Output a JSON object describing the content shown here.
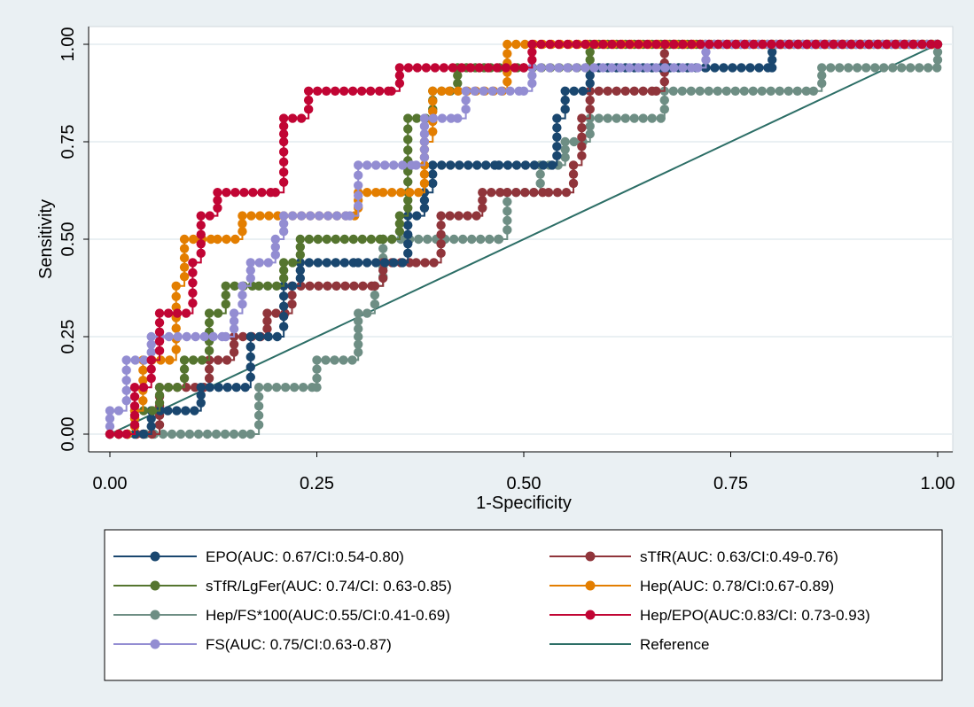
{
  "chart_data": {
    "type": "line",
    "xlabel": "1-Specificity",
    "ylabel": "Sensitivity",
    "xlim": [
      0,
      1
    ],
    "ylim": [
      0,
      1
    ],
    "xticks": [
      "0.00",
      "0.25",
      "0.50",
      "0.75",
      "1.00"
    ],
    "yticks": [
      "0.00",
      "0.25",
      "0.50",
      "0.75",
      "1.00"
    ],
    "grid": true,
    "legend_position": "bottom",
    "series": [
      {
        "name": "EPO(AUC: 0.67/CI:0.54-0.80)",
        "color": "#1a476f",
        "points": [
          [
            0,
            0
          ],
          [
            0.03,
            0
          ],
          [
            0.05,
            0.06
          ],
          [
            0.07,
            0.06
          ],
          [
            0.11,
            0.12
          ],
          [
            0.17,
            0.25
          ],
          [
            0.21,
            0.38
          ],
          [
            0.23,
            0.44
          ],
          [
            0.3,
            0.44
          ],
          [
            0.36,
            0.56
          ],
          [
            0.38,
            0.62
          ],
          [
            0.39,
            0.69
          ],
          [
            0.47,
            0.69
          ],
          [
            0.54,
            0.81
          ],
          [
            0.55,
            0.88
          ],
          [
            0.58,
            0.94
          ],
          [
            0.72,
            0.94
          ],
          [
            0.8,
            0.94
          ],
          [
            0.8,
            1
          ],
          [
            1,
            1
          ]
        ]
      },
      {
        "name": "sTfR(AUC: 0.63/CI:0.49-0.76)",
        "color": "#90353b",
        "points": [
          [
            0,
            0
          ],
          [
            0.04,
            0
          ],
          [
            0.06,
            0.12
          ],
          [
            0.12,
            0.19
          ],
          [
            0.15,
            0.25
          ],
          [
            0.19,
            0.31
          ],
          [
            0.22,
            0.38
          ],
          [
            0.32,
            0.38
          ],
          [
            0.33,
            0.44
          ],
          [
            0.37,
            0.44
          ],
          [
            0.4,
            0.56
          ],
          [
            0.45,
            0.62
          ],
          [
            0.48,
            0.62
          ],
          [
            0.53,
            0.62
          ],
          [
            0.56,
            0.69
          ],
          [
            0.57,
            0.81
          ],
          [
            0.58,
            0.88
          ],
          [
            0.66,
            0.88
          ],
          [
            0.67,
            1
          ],
          [
            1,
            1
          ]
        ]
      },
      {
        "name": "sTfR/LgFer(AUC: 0.74/CI: 0.63-0.85)",
        "color": "#55752f",
        "points": [
          [
            0,
            0
          ],
          [
            0.03,
            0.06
          ],
          [
            0.06,
            0.12
          ],
          [
            0.09,
            0.19
          ],
          [
            0.12,
            0.31
          ],
          [
            0.14,
            0.38
          ],
          [
            0.18,
            0.38
          ],
          [
            0.21,
            0.44
          ],
          [
            0.23,
            0.5
          ],
          [
            0.33,
            0.5
          ],
          [
            0.35,
            0.56
          ],
          [
            0.36,
            0.62
          ],
          [
            0.36,
            0.81
          ],
          [
            0.39,
            0.88
          ],
          [
            0.42,
            0.94
          ],
          [
            0.46,
            0.94
          ],
          [
            0.5,
            0.94
          ],
          [
            0.58,
            1
          ],
          [
            1,
            1
          ]
        ]
      },
      {
        "name": "Hep(AUC: 0.78/CI:0.67-0.89)",
        "color": "#e37e00",
        "points": [
          [
            0,
            0
          ],
          [
            0.03,
            0.06
          ],
          [
            0.04,
            0.19
          ],
          [
            0.08,
            0.38
          ],
          [
            0.09,
            0.5
          ],
          [
            0.13,
            0.5
          ],
          [
            0.16,
            0.56
          ],
          [
            0.21,
            0.56
          ],
          [
            0.3,
            0.62
          ],
          [
            0.33,
            0.62
          ],
          [
            0.38,
            0.69
          ],
          [
            0.38,
            0.75
          ],
          [
            0.39,
            0.88
          ],
          [
            0.41,
            0.88
          ],
          [
            0.48,
            1
          ],
          [
            1,
            1
          ]
        ]
      },
      {
        "name": "Hep/FS*100(AUC:0.55/CI:0.41-0.69)",
        "color": "#6e8e84",
        "points": [
          [
            0,
            0
          ],
          [
            0.17,
            0
          ],
          [
            0.18,
            0.12
          ],
          [
            0.25,
            0.12
          ],
          [
            0.25,
            0.19
          ],
          [
            0.3,
            0.25
          ],
          [
            0.3,
            0.31
          ],
          [
            0.32,
            0.38
          ],
          [
            0.33,
            0.5
          ],
          [
            0.47,
            0.5
          ],
          [
            0.48,
            0.62
          ],
          [
            0.52,
            0.69
          ],
          [
            0.55,
            0.75
          ],
          [
            0.58,
            0.81
          ],
          [
            0.67,
            0.88
          ],
          [
            0.85,
            0.88
          ],
          [
            0.86,
            0.94
          ],
          [
            1,
            1
          ]
        ]
      },
      {
        "name": "Hep/EPO(AUC:0.83/CI: 0.73-0.93)",
        "color": "#c10534",
        "points": [
          [
            0,
            0
          ],
          [
            0.02,
            0
          ],
          [
            0.03,
            0.12
          ],
          [
            0.05,
            0.19
          ],
          [
            0.06,
            0.31
          ],
          [
            0.1,
            0.44
          ],
          [
            0.11,
            0.56
          ],
          [
            0.13,
            0.62
          ],
          [
            0.2,
            0.62
          ],
          [
            0.21,
            0.75
          ],
          [
            0.21,
            0.81
          ],
          [
            0.24,
            0.88
          ],
          [
            0.34,
            0.88
          ],
          [
            0.35,
            0.94
          ],
          [
            0.5,
            0.94
          ],
          [
            0.51,
            1
          ],
          [
            1,
            1
          ]
        ]
      },
      {
        "name": "FS(AUC: 0.75/CI:0.63-0.87)",
        "color": "#938dd2",
        "points": [
          [
            0,
            0
          ],
          [
            0,
            0.06
          ],
          [
            0.02,
            0.19
          ],
          [
            0.05,
            0.25
          ],
          [
            0.14,
            0.25
          ],
          [
            0.15,
            0.31
          ],
          [
            0.16,
            0.38
          ],
          [
            0.17,
            0.44
          ],
          [
            0.2,
            0.5
          ],
          [
            0.21,
            0.56
          ],
          [
            0.29,
            0.56
          ],
          [
            0.3,
            0.69
          ],
          [
            0.37,
            0.69
          ],
          [
            0.38,
            0.75
          ],
          [
            0.38,
            0.81
          ],
          [
            0.42,
            0.81
          ],
          [
            0.43,
            0.88
          ],
          [
            0.5,
            0.88
          ],
          [
            0.51,
            0.94
          ],
          [
            0.71,
            0.94
          ],
          [
            0.72,
            1
          ],
          [
            1,
            1
          ]
        ]
      },
      {
        "name": "Reference",
        "color": "#2c6e66",
        "line_only": true,
        "points": [
          [
            0,
            0
          ],
          [
            1,
            1
          ]
        ]
      }
    ]
  }
}
